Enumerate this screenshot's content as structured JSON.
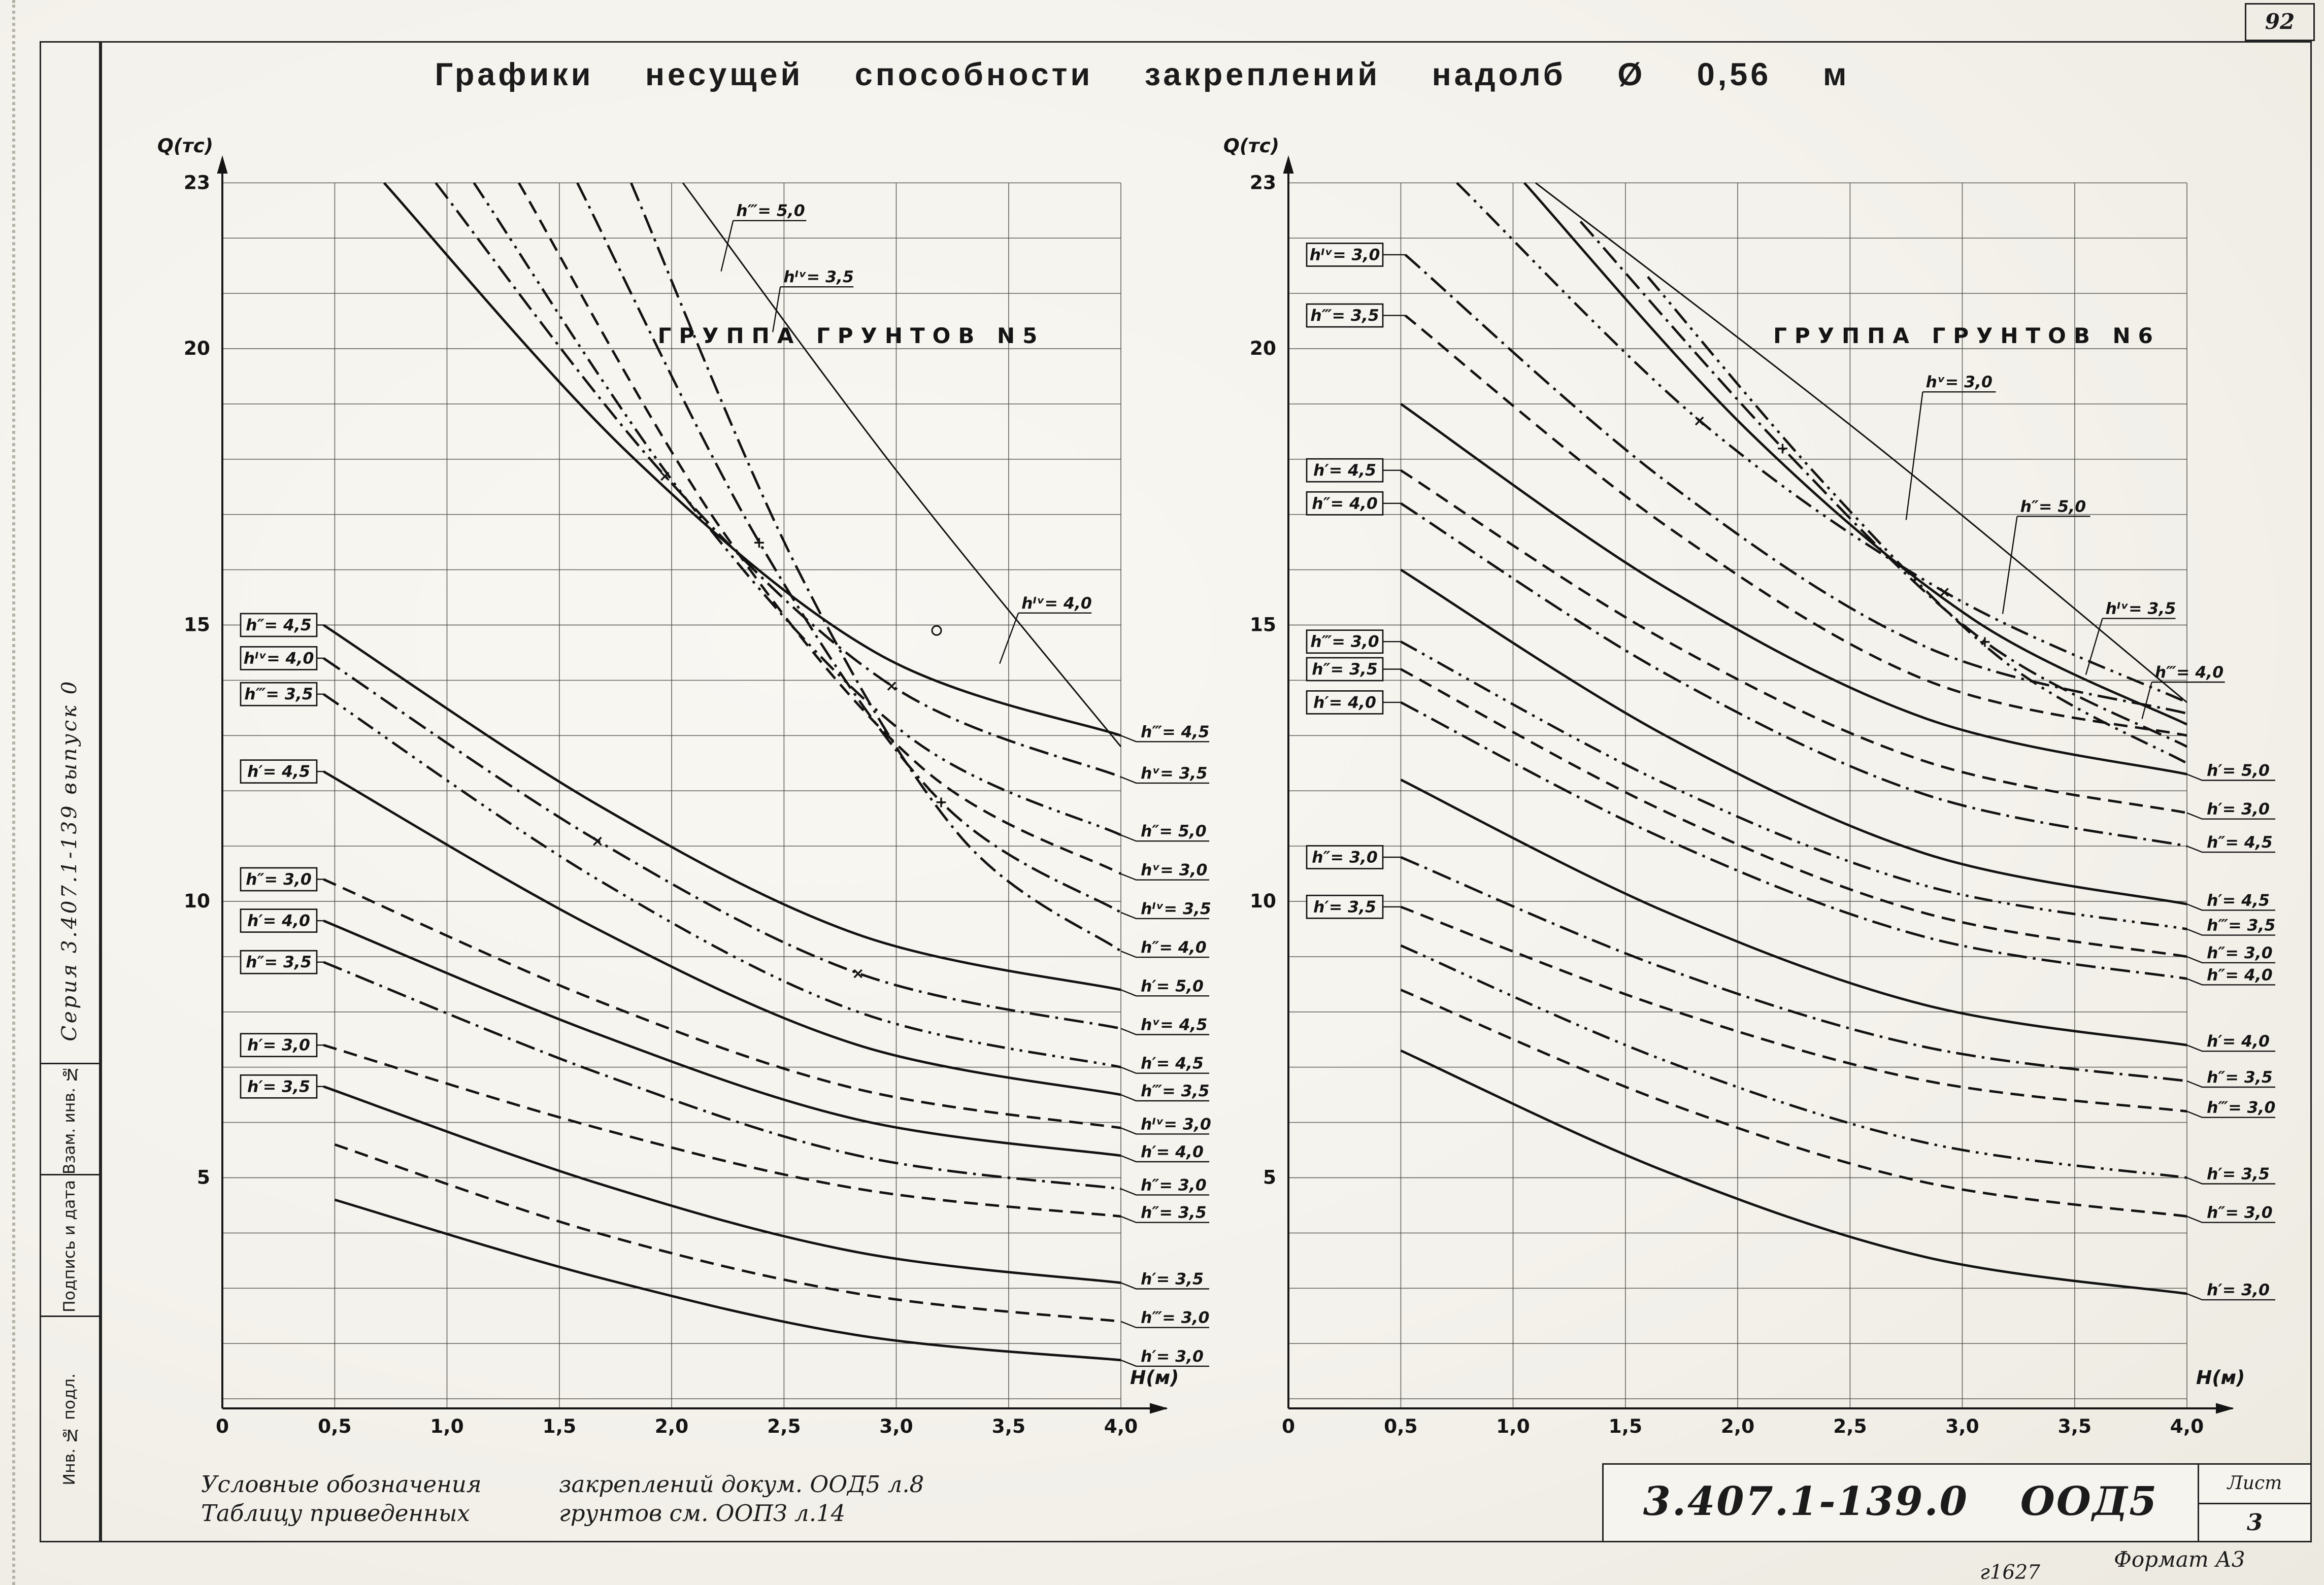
{
  "page": {
    "corner_number": "92",
    "format_note": "Формат А3",
    "stamp_code": "г1627"
  },
  "title": "Графики несущей способности закреплений надолб Ø 0,56 м",
  "sidebar": {
    "series_label": "Серия 3.407.1-139 выпуск 0",
    "cells": [
      "Взам. инв. №",
      "Подпись и дата",
      "Инв. № подл."
    ]
  },
  "notes": {
    "line1_left": "Условные обозначения",
    "line1_right": "закреплений докум. ООД5 л.8",
    "line2_left": "Таблицу приведенных",
    "line2_right": "грунтов см. ООПЗ л.14"
  },
  "title_block": {
    "doc_left": "3.407.1-139.0",
    "doc_right": "ООД5",
    "sheet_label": "Лист",
    "sheet_number": "3"
  },
  "chart_data": [
    {
      "type": "line",
      "group_title": "ГРУППА ГРУНТОВ N5",
      "ylabel": "Q(тс)",
      "xlabel": "H(м)",
      "xlim": [
        0,
        4
      ],
      "ylim": [
        0,
        23
      ],
      "x_ticks": [
        "0",
        "0,5",
        "1,0",
        "1,5",
        "2,0",
        "2,5",
        "3,0",
        "3,5",
        "4,0"
      ],
      "y_ticks": [
        23,
        20,
        15,
        10,
        5
      ],
      "envelope": [
        [
          2.05,
          23
        ],
        [
          3.0,
          17.8
        ],
        [
          4.0,
          12.8
        ]
      ],
      "series": [
        {
          "name": "h‴= 4,5",
          "style": "solid",
          "points": [
            [
              0.72,
              23
            ],
            [
              1.81,
              18.1
            ],
            [
              2.91,
              14.5
            ],
            [
              4,
              13
            ]
          ]
        },
        {
          "name": "hᵛ= 3,5",
          "style": "dashdot",
          "marker": "x",
          "points": [
            [
              0.95,
              23
            ],
            [
              1.97,
              17.7
            ],
            [
              2.98,
              13.9
            ],
            [
              4,
              12.25
            ]
          ]
        },
        {
          "name": "h″= 5,0",
          "style": "dashdotdot",
          "points": [
            [
              1.12,
              23
            ],
            [
              2.08,
              17.2
            ],
            [
              3.05,
              13
            ],
            [
              4,
              11.2
            ]
          ]
        },
        {
          "name": "hᵛ= 3,0",
          "style": "dash",
          "points": [
            [
              1.32,
              23
            ],
            [
              2.21,
              16.8
            ],
            [
              3.12,
              12.4
            ],
            [
              4,
              10.5
            ]
          ]
        },
        {
          "name": "hᴵᵛ= 3,5",
          "style": "dashdot",
          "marker": "+",
          "points": [
            [
              1.58,
              23
            ],
            [
              2.39,
              16.5
            ],
            [
              3.2,
              11.8
            ],
            [
              4,
              9.8
            ]
          ]
        },
        {
          "name": "h″= 4,0",
          "style": "dashdot",
          "points": [
            [
              1.82,
              23
            ],
            [
              2.55,
              16.1
            ],
            [
              3.28,
              11.2
            ],
            [
              4,
              9.1
            ]
          ]
        },
        {
          "name": "h′= 5,0",
          "style": "solid",
          "start_label": "h″= 4,5",
          "points": [
            [
              0.45,
              15
            ],
            [
              1.67,
              11.75
            ],
            [
              2.83,
              9.4
            ],
            [
              4,
              8.4
            ]
          ]
        },
        {
          "name": "hᵛ= 4,5",
          "style": "dashdot",
          "marker": "x",
          "start_label": "hᴵᵛ= 4,0",
          "points": [
            [
              0.45,
              14.4
            ],
            [
              1.67,
              11.1
            ],
            [
              2.83,
              8.7
            ],
            [
              4,
              7.7
            ]
          ]
        },
        {
          "name": "h′= 4,5",
          "style": "dashdotdot",
          "start_label": "h‴= 3,5",
          "points": [
            [
              0.45,
              13.75
            ],
            [
              1.67,
              10.4
            ],
            [
              2.83,
              8
            ],
            [
              4,
              7
            ]
          ]
        },
        {
          "name": "h‴= 3,5",
          "style": "solid",
          "start_label": "h′= 4,5",
          "points": [
            [
              0.45,
              12.35
            ],
            [
              1.67,
              9.5
            ],
            [
              2.83,
              7.4
            ],
            [
              4,
              6.5
            ]
          ]
        },
        {
          "name": "hᴵᵛ= 3,0",
          "style": "dash",
          "start_label": "h″= 3,0",
          "points": [
            [
              0.45,
              10.4
            ],
            [
              1.67,
              8.2
            ],
            [
              2.83,
              6.6
            ],
            [
              4,
              5.9
            ]
          ]
        },
        {
          "name": "h′= 4,0",
          "style": "solid",
          "start_label": "h′= 4,0",
          "points": [
            [
              0.45,
              9.65
            ],
            [
              1.67,
              7.6
            ],
            [
              2.83,
              6.05
            ],
            [
              4,
              5.4
            ]
          ]
        },
        {
          "name": "h″= 3,0",
          "style": "dashdot",
          "start_label": "h″= 3,5",
          "points": [
            [
              0.45,
              8.9
            ],
            [
              1.67,
              6.9
            ],
            [
              2.83,
              5.4
            ],
            [
              4,
              4.8
            ]
          ]
        },
        {
          "name": "h″= 3,5",
          "style": "dash",
          "start_label": "h′= 3,0",
          "points": [
            [
              0.45,
              7.4
            ],
            [
              1.67,
              5.9
            ],
            [
              2.83,
              4.8
            ],
            [
              4,
              4.3
            ]
          ]
        },
        {
          "name": "h′= 3,5",
          "style": "solid",
          "start_label": "h′= 3,5",
          "points": [
            [
              0.45,
              6.65
            ],
            [
              1.67,
              4.9
            ],
            [
              2.83,
              3.65
            ],
            [
              4,
              3.1
            ]
          ]
        },
        {
          "name": "h‴= 3,0",
          "style": "dash",
          "points": [
            [
              0.5,
              5.6
            ],
            [
              1.67,
              4
            ],
            [
              2.83,
              2.9
            ],
            [
              4,
              2.4
            ]
          ]
        },
        {
          "name": "h′= 3,0",
          "style": "solid",
          "points": [
            [
              0.5,
              4.6
            ],
            [
              1.67,
              3.2
            ],
            [
              2.83,
              2.15
            ],
            [
              4,
              1.7
            ]
          ]
        }
      ],
      "floating_labels": [
        {
          "text": "h‴= 5,0",
          "h": 2.45,
          "q": 22.4,
          "to": [
            2.22,
            21.4
          ]
        },
        {
          "text": "hᴵᵛ= 3,5",
          "h": 2.66,
          "q": 21.2,
          "to": [
            2.45,
            20.3
          ]
        },
        {
          "text": "hᴵᵛ= 4,0",
          "h": 3.72,
          "q": 15.3,
          "to": [
            3.46,
            14.3
          ]
        }
      ],
      "point_markers": [
        {
          "shape": "circle",
          "h": 3.18,
          "q": 14.9
        }
      ]
    },
    {
      "type": "line",
      "group_title": "ГРУППА ГРУНТОВ N6",
      "ylabel": "Q(тс)",
      "xlabel": "H(м)",
      "xlim": [
        0,
        4
      ],
      "ylim": [
        0,
        23
      ],
      "x_ticks": [
        "0",
        "0,5",
        "1,0",
        "1,5",
        "2,0",
        "2,5",
        "3,0",
        "3,5",
        "4,0"
      ],
      "y_ticks": [
        23,
        20,
        15,
        10,
        5
      ],
      "envelope": [
        [
          1.1,
          23
        ],
        [
          2.6,
          18.3
        ],
        [
          4.0,
          13.6
        ]
      ],
      "series": [
        {
          "name": "hᴵᵛ= 3,0",
          "style": "dashdot",
          "start_label": "hᴵᵛ= 3,0",
          "end_label": false,
          "points": [
            [
              0.52,
              21.7
            ],
            [
              1.68,
              17.6
            ],
            [
              2.84,
              14.6
            ],
            [
              4,
              13.4
            ]
          ]
        },
        {
          "name": "h‴= 3,5",
          "style": "dash",
          "start_label": "h‴= 3,5",
          "end_label": false,
          "points": [
            [
              0.52,
              20.6
            ],
            [
              1.68,
              16.8
            ],
            [
              2.84,
              14
            ],
            [
              4,
              13
            ]
          ]
        },
        {
          "name": "hᵛ= 3,0",
          "style": "dashdotdot",
          "marker": "x",
          "end_label": false,
          "float": {
            "h": 3.0,
            "q": 19.3,
            "to": [
              2.75,
              16.9
            ]
          },
          "points": [
            [
              0.75,
              23
            ],
            [
              1.83,
              18.7
            ],
            [
              2.92,
              15.6
            ],
            [
              4,
              13.6
            ]
          ]
        },
        {
          "name": "h″= 5,0",
          "style": "solid",
          "end_label": false,
          "float": {
            "h": 3.42,
            "q": 17.05,
            "to": [
              3.18,
              15.2
            ]
          },
          "points": [
            [
              1.05,
              23
            ],
            [
              2.05,
              18.5
            ],
            [
              3.05,
              15.1
            ],
            [
              4,
              13.2
            ]
          ]
        },
        {
          "name": "hᴵᵛ= 3,5",
          "style": "dashdot",
          "marker": "+",
          "end_label": false,
          "float": {
            "h": 3.8,
            "q": 15.2,
            "to": [
              3.55,
              14.1
            ]
          },
          "points": [
            [
              1.3,
              22.3
            ],
            [
              2.2,
              18.2
            ],
            [
              3.1,
              14.7
            ],
            [
              4,
              12.8
            ]
          ]
        },
        {
          "name": "h‴= 4,0",
          "style": "dashdotdot",
          "end_label": false,
          "float": {
            "h": 4.02,
            "q": 14.05,
            "to": [
              3.8,
              13.3
            ]
          },
          "points": [
            [
              1.6,
              21.3
            ],
            [
              2.4,
              17.5
            ],
            [
              3.2,
              14.3
            ],
            [
              4,
              12.5
            ]
          ]
        },
        {
          "name": "h′= 5,0",
          "style": "solid",
          "points": [
            [
              0.5,
              19
            ],
            [
              1.67,
              15.7
            ],
            [
              2.83,
              13.32
            ],
            [
              4,
              12.3
            ]
          ]
        },
        {
          "name": "h′= 3,0",
          "style": "dash",
          "start_label": "h′= 4,5",
          "points": [
            [
              0.5,
              17.8
            ],
            [
              1.67,
              14.74
            ],
            [
              2.83,
              12.54
            ],
            [
              4,
              11.6
            ]
          ]
        },
        {
          "name": "h″= 4,5",
          "style": "dashdot",
          "start_label": "h″= 4,0",
          "points": [
            [
              0.5,
              17.2
            ],
            [
              1.67,
              14.14
            ],
            [
              2.83,
              11.94
            ],
            [
              4,
              11
            ]
          ]
        },
        {
          "name": "h′= 4,5",
          "style": "solid",
          "points": [
            [
              0.5,
              16
            ],
            [
              1.67,
              13.02
            ],
            [
              2.83,
              10.87
            ],
            [
              4,
              9.95
            ]
          ]
        },
        {
          "name": "h‴= 3,5",
          "style": "dashdotdot",
          "start_label": "h‴= 3,0",
          "points": [
            [
              0.5,
              14.7
            ],
            [
              1.67,
              12.14
            ],
            [
              2.83,
              10.29
            ],
            [
              4,
              9.5
            ]
          ]
        },
        {
          "name": "h″= 3,0",
          "style": "dash",
          "start_label": "h″= 3,5",
          "points": [
            [
              0.5,
              14.2
            ],
            [
              1.67,
              11.64
            ],
            [
              2.83,
              9.79
            ],
            [
              4,
              9
            ]
          ]
        },
        {
          "name": "h″= 4,0",
          "style": "dashdot",
          "start_label": "h′= 4,0",
          "points": [
            [
              0.5,
              13.6
            ],
            [
              1.67,
              11.14
            ],
            [
              2.83,
              9.36
            ],
            [
              4,
              8.6
            ]
          ]
        },
        {
          "name": "h′= 4,0",
          "style": "solid",
          "points": [
            [
              0.5,
              12.2
            ],
            [
              1.67,
              9.83
            ],
            [
              2.83,
              8.13
            ],
            [
              4,
              7.4
            ]
          ]
        },
        {
          "name": "h″= 3,5",
          "style": "dashdot",
          "start_label": "h″= 3,0",
          "points": [
            [
              0.5,
              10.8
            ],
            [
              1.67,
              8.8
            ],
            [
              2.83,
              7.37
            ],
            [
              4,
              6.75
            ]
          ]
        },
        {
          "name": "h‴= 3,0",
          "style": "dash",
          "start_label": "h′= 3,5",
          "points": [
            [
              0.5,
              9.9
            ],
            [
              1.67,
              8.08
            ],
            [
              2.83,
              6.76
            ],
            [
              4,
              6.2
            ]
          ]
        },
        {
          "name": "h′= 3,5",
          "style": "dashdotdot",
          "points": [
            [
              0.5,
              9.2
            ],
            [
              1.67,
              7.13
            ],
            [
              2.83,
              5.64
            ],
            [
              4,
              5
            ]
          ]
        },
        {
          "name": "h″= 3,0",
          "style": "dash",
          "points": [
            [
              0.5,
              8.4
            ],
            [
              1.67,
              6.38
            ],
            [
              2.83,
              4.92
            ],
            [
              4,
              4.3
            ]
          ]
        },
        {
          "name": "h′= 3,0",
          "style": "solid",
          "points": [
            [
              0.5,
              7.3
            ],
            [
              1.67,
              5.13
            ],
            [
              2.83,
              3.57
            ],
            [
              4,
              2.9
            ]
          ]
        }
      ],
      "floating_labels": [],
      "point_markers": []
    }
  ]
}
